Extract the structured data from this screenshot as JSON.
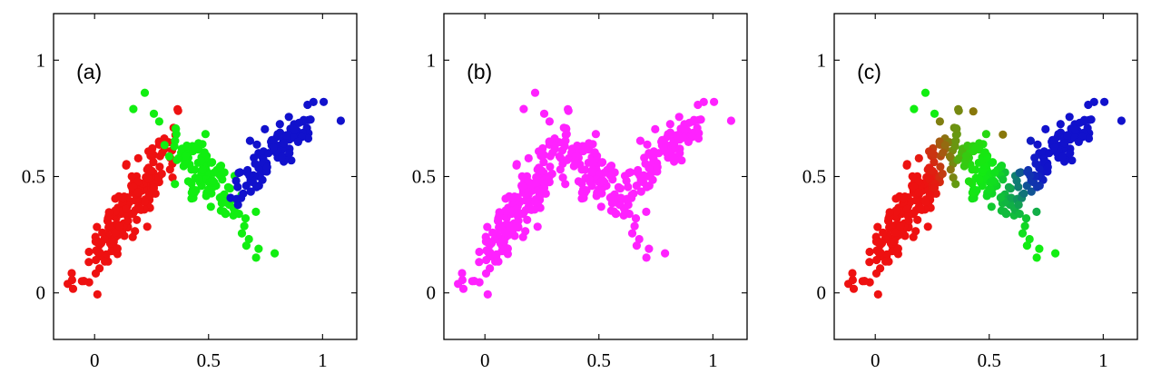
{
  "chart_data": [
    {
      "type": "scatter",
      "panel_label": "(a)",
      "xlim": [
        -0.18,
        1.15
      ],
      "ylim": [
        -0.2,
        1.2
      ],
      "x_ticks": [
        0,
        0.5,
        1
      ],
      "x_tick_labels": [
        "0",
        "0.5",
        "1"
      ],
      "y_ticks": [
        0,
        0.5,
        1
      ],
      "y_tick_labels": [
        "0",
        "0.5",
        "1"
      ],
      "grid": false,
      "coloring": "three discrete clusters",
      "series": [
        {
          "color": "#ee1111",
          "centroid": [
            0.14,
            0.36
          ],
          "spread": [
            0.11,
            0.075
          ],
          "slope": 1.35,
          "count": 190,
          "range_x": [
            -0.12,
            0.42
          ]
        },
        {
          "color": "#11ee11",
          "centroid": [
            0.5,
            0.48
          ],
          "spread": [
            0.1,
            0.07
          ],
          "slope": -1.0,
          "count": 120,
          "range_x": [
            0.28,
            0.72
          ]
        },
        {
          "color": "#1111cc",
          "centroid": [
            0.8,
            0.62
          ],
          "spread": [
            0.11,
            0.05
          ],
          "slope": 0.9,
          "count": 100,
          "range_x": [
            0.55,
            1.08
          ]
        }
      ],
      "outliers": [
        {
          "x": 0.22,
          "y": 0.86,
          "color": "#11ee11"
        },
        {
          "x": 0.17,
          "y": 0.79,
          "color": "#11ee11"
        },
        {
          "x": 0.26,
          "y": 0.77,
          "color": "#11ee11"
        },
        {
          "x": 0.79,
          "y": 0.17,
          "color": "#11ee11"
        },
        {
          "x": 0.96,
          "y": 0.82,
          "color": "#1111cc"
        },
        {
          "x": 1.08,
          "y": 0.74,
          "color": "#1111cc"
        }
      ]
    },
    {
      "type": "scatter",
      "panel_label": "(b)",
      "xlim": [
        -0.18,
        1.15
      ],
      "ylim": [
        -0.2,
        1.2
      ],
      "x_ticks": [
        0,
        0.5,
        1
      ],
      "x_tick_labels": [
        "0",
        "0.5",
        "1"
      ],
      "y_ticks": [
        0,
        0.5,
        1
      ],
      "y_tick_labels": [
        "0",
        "0.5",
        "1"
      ],
      "grid": false,
      "coloring": "single color (magenta)",
      "series": [
        {
          "color": "#ff22ff",
          "centroid": [
            0.14,
            0.36
          ],
          "spread": [
            0.11,
            0.075
          ],
          "slope": 1.35,
          "count": 190,
          "range_x": [
            -0.12,
            0.42
          ]
        },
        {
          "color": "#ff22ff",
          "centroid": [
            0.5,
            0.48
          ],
          "spread": [
            0.1,
            0.07
          ],
          "slope": -1.0,
          "count": 120,
          "range_x": [
            0.28,
            0.72
          ]
        },
        {
          "color": "#ff22ff",
          "centroid": [
            0.8,
            0.62
          ],
          "spread": [
            0.11,
            0.05
          ],
          "slope": 0.9,
          "count": 100,
          "range_x": [
            0.55,
            1.08
          ]
        }
      ],
      "outliers": [
        {
          "x": 0.22,
          "y": 0.86,
          "color": "#ff22ff"
        },
        {
          "x": 0.17,
          "y": 0.79,
          "color": "#ff22ff"
        },
        {
          "x": 0.26,
          "y": 0.77,
          "color": "#ff22ff"
        },
        {
          "x": 0.79,
          "y": 0.17,
          "color": "#ff22ff"
        },
        {
          "x": 0.96,
          "y": 0.82,
          "color": "#ff22ff"
        },
        {
          "x": 1.08,
          "y": 0.74,
          "color": "#ff22ff"
        }
      ]
    },
    {
      "type": "scatter",
      "panel_label": "(c)",
      "xlim": [
        -0.18,
        1.15
      ],
      "ylim": [
        -0.2,
        1.2
      ],
      "x_ticks": [
        0,
        0.5,
        1
      ],
      "x_tick_labels": [
        "0",
        "0.5",
        "1"
      ],
      "y_ticks": [
        0,
        0.5,
        1
      ],
      "y_tick_labels": [
        "0",
        "0.5",
        "1"
      ],
      "grid": false,
      "coloring": "soft membership blend (red-green-blue)",
      "series": [
        {
          "color": "#ee1111",
          "centroid": [
            0.14,
            0.36
          ],
          "spread": [
            0.11,
            0.075
          ],
          "slope": 1.35,
          "count": 190,
          "range_x": [
            -0.12,
            0.42
          ]
        },
        {
          "color": "#11ee11",
          "centroid": [
            0.5,
            0.48
          ],
          "spread": [
            0.1,
            0.07
          ],
          "slope": -1.0,
          "count": 120,
          "range_x": [
            0.28,
            0.72
          ]
        },
        {
          "color": "#1111cc",
          "centroid": [
            0.8,
            0.62
          ],
          "spread": [
            0.11,
            0.05
          ],
          "slope": 0.9,
          "count": 100,
          "range_x": [
            0.55,
            1.08
          ]
        }
      ],
      "outliers": [
        {
          "x": 0.22,
          "y": 0.86,
          "color": "#11ee11"
        },
        {
          "x": 0.17,
          "y": 0.79,
          "color": "#11ee11"
        },
        {
          "x": 0.26,
          "y": 0.77,
          "color": "#11ee11"
        },
        {
          "x": 0.79,
          "y": 0.17,
          "color": "#11ee11"
        },
        {
          "x": 0.43,
          "y": 0.78,
          "color": "#88770a"
        },
        {
          "x": 0.56,
          "y": 0.68,
          "color": "#88770a"
        },
        {
          "x": 0.96,
          "y": 0.82,
          "color": "#1111cc"
        },
        {
          "x": 1.08,
          "y": 0.74,
          "color": "#1111cc"
        }
      ]
    }
  ]
}
